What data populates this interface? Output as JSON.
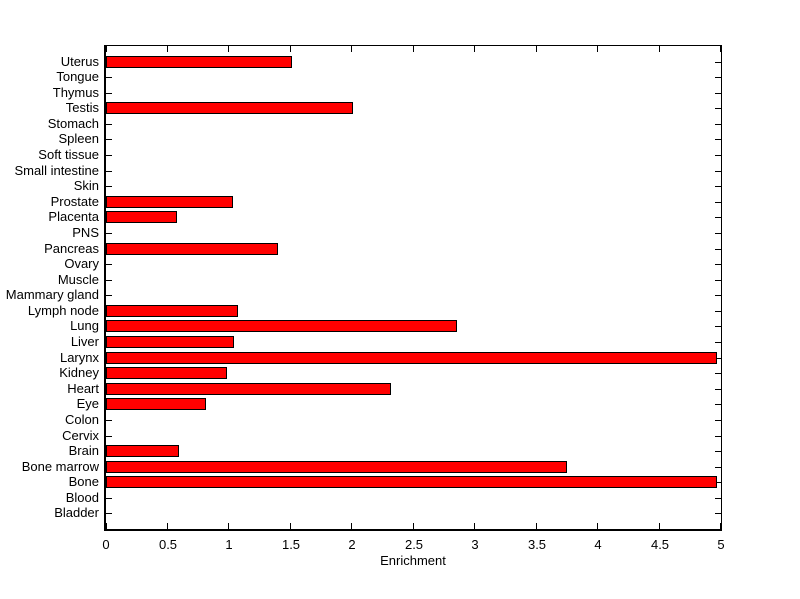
{
  "chart_data": {
    "type": "bar",
    "orientation": "horizontal",
    "title": "",
    "xlabel": "Enrichment",
    "ylabel": "",
    "xlim": [
      0,
      5
    ],
    "xticks": [
      0,
      0.5,
      1,
      1.5,
      2,
      2.5,
      3,
      3.5,
      4,
      4.5,
      5
    ],
    "xtick_labels": [
      "0",
      "0.5",
      "1",
      "1.5",
      "2",
      "2.5",
      "3",
      "3.5",
      "4",
      "4.5",
      "5"
    ],
    "grid": false,
    "legend": null,
    "bar_color": "#ff0000",
    "bar_border_color": "#000000",
    "background_color": "#ffffff",
    "categories": [
      "Uterus",
      "Tongue",
      "Thymus",
      "Testis",
      "Stomach",
      "Spleen",
      "Soft tissue",
      "Small intestine",
      "Skin",
      "Prostate",
      "Placenta",
      "PNS",
      "Pancreas",
      "Ovary",
      "Muscle",
      "Mammary gland",
      "Lymph node",
      "Lung",
      "Liver",
      "Larynx",
      "Kidney",
      "Heart",
      "Eye",
      "Colon",
      "Cervix",
      "Brain",
      "Bone marrow",
      "Bone",
      "Blood",
      "Bladder"
    ],
    "values": [
      1.51,
      0,
      0,
      2.01,
      0,
      0,
      0,
      0,
      0,
      1.03,
      0.58,
      0,
      1.4,
      0,
      0,
      0,
      1.07,
      2.85,
      1.04,
      4.97,
      0.98,
      2.32,
      0.81,
      0,
      0,
      0.59,
      3.75,
      4.97,
      0,
      0
    ]
  }
}
